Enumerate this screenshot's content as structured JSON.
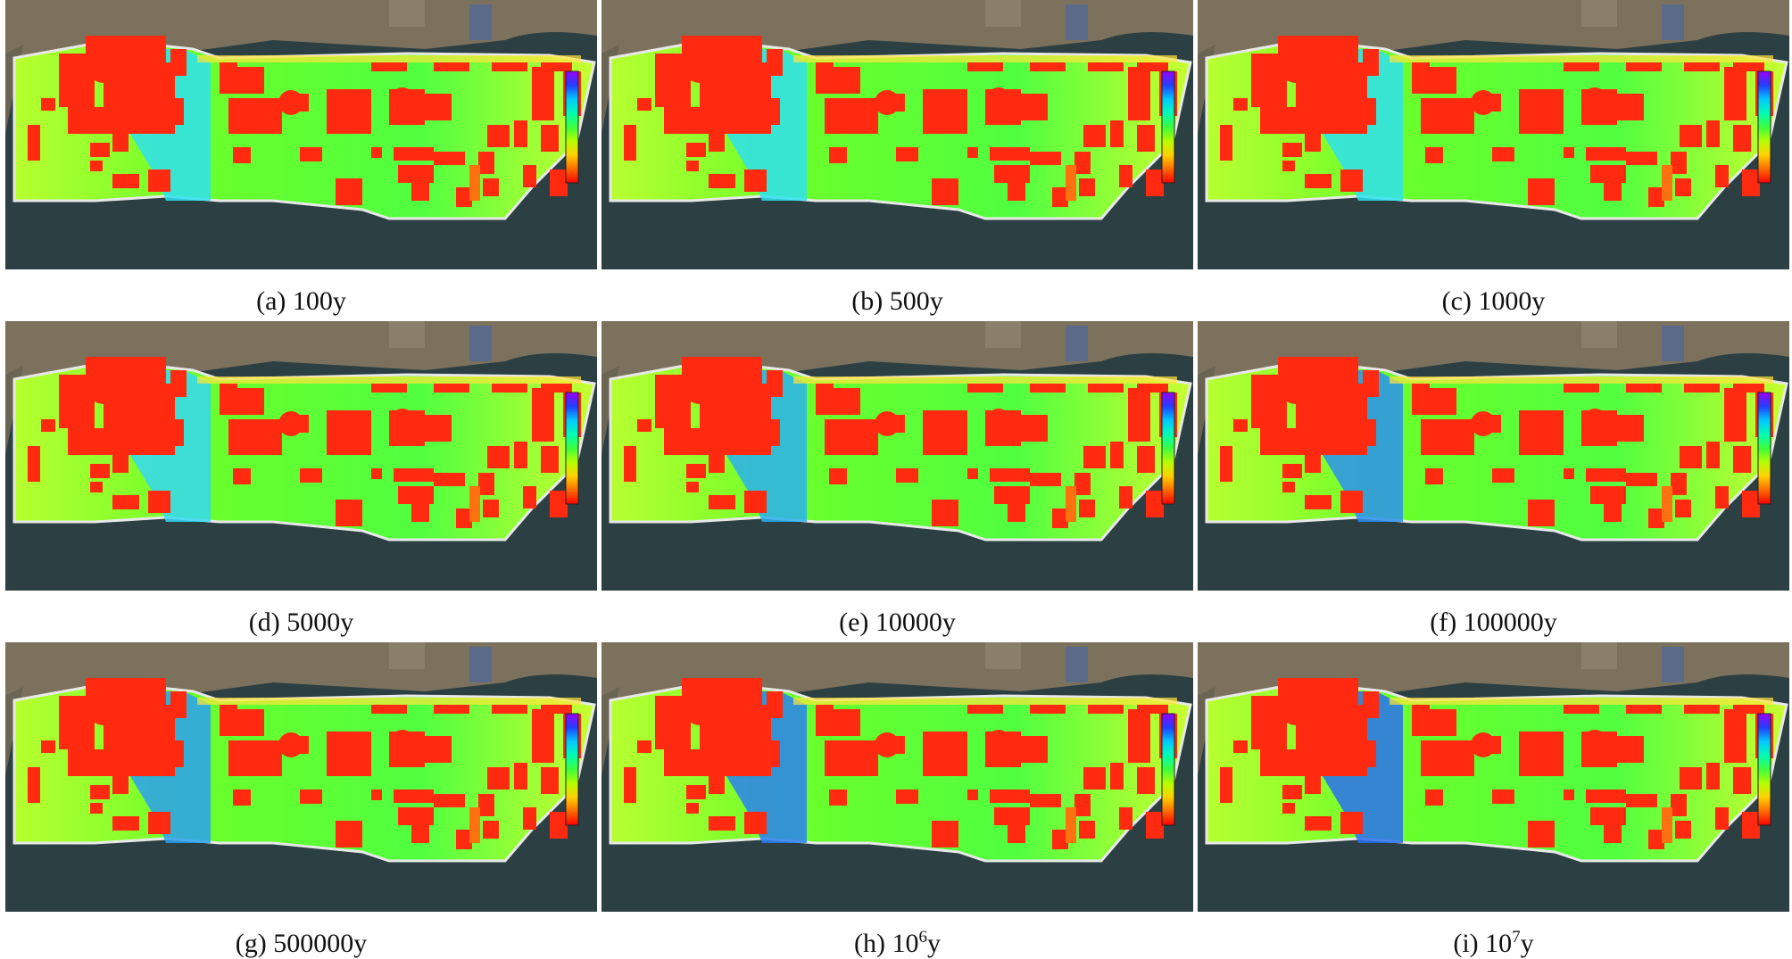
{
  "panels": [
    {
      "letter": "(a)",
      "base": "100",
      "exp": "",
      "suffix": "y"
    },
    {
      "letter": "(b)",
      "base": "500",
      "exp": "",
      "suffix": "y"
    },
    {
      "letter": "(c)",
      "base": "1000",
      "exp": "",
      "suffix": "y"
    },
    {
      "letter": "(d)",
      "base": "5000",
      "exp": "",
      "suffix": "y"
    },
    {
      "letter": "(e)",
      "base": "10000",
      "exp": "",
      "suffix": "y"
    },
    {
      "letter": "(f)",
      "base": "100000",
      "exp": "",
      "suffix": "y"
    },
    {
      "letter": "(g)",
      "base": "500000",
      "exp": "",
      "suffix": "y"
    },
    {
      "letter": "(h)",
      "base": "10",
      "exp": "6",
      "suffix": "y"
    },
    {
      "letter": "(i)",
      "base": "10",
      "exp": "7",
      "suffix": "y"
    }
  ],
  "legend_colors": [
    "#ff0000",
    "#ff6a00",
    "#ffd000",
    "#b4ff00",
    "#3cff3c",
    "#00ffb4",
    "#00c8ff",
    "#2040ff",
    "#9a00ff"
  ],
  "map_colors": {
    "sea": "#2c3f43",
    "land": "#7c715c",
    "buildings": "#ff2a10",
    "ground": "#55ff30",
    "channel": "#2ee0f0",
    "warm": "#ffe63c"
  }
}
